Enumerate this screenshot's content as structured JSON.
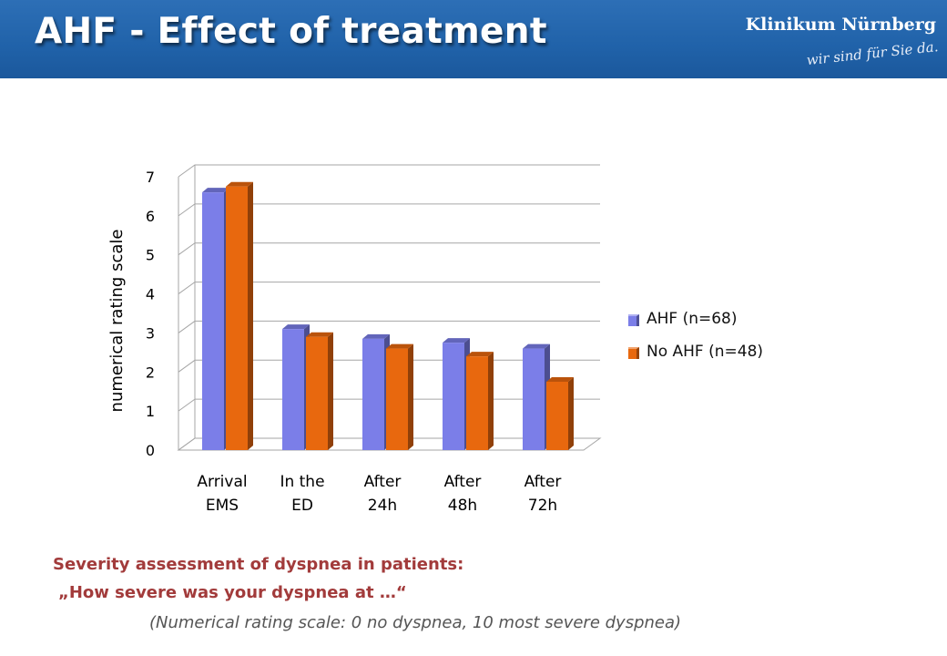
{
  "slide": {
    "title": "AHF - Effect of treatment"
  },
  "logo": {
    "name": "Klinikum Nürnberg",
    "slogan": "wir sind für Sie da."
  },
  "colors": {
    "header": "#2062a9",
    "ahf": "#7b7ee8",
    "no_ahf": "#e8680e",
    "caption": "#a23b3b"
  },
  "chart_data": {
    "type": "bar",
    "style": "3d-clustered",
    "categories": [
      [
        "Arrival",
        "EMS"
      ],
      [
        "In the",
        "ED"
      ],
      [
        "After",
        "24h"
      ],
      [
        "After",
        "48h"
      ],
      [
        "After",
        "72h"
      ]
    ],
    "series": [
      {
        "name": "AHF (n=68)",
        "color": "#7b7ee8",
        "values": [
          6.6,
          3.1,
          2.85,
          2.75,
          2.6
        ]
      },
      {
        "name": "No AHF (n=48)",
        "color": "#e8680e",
        "values": [
          6.75,
          2.9,
          2.6,
          2.4,
          1.75
        ]
      }
    ],
    "ylabel": "numerical rating scale",
    "ylim": [
      0,
      7
    ],
    "yticks": [
      0,
      1,
      2,
      3,
      4,
      5,
      6,
      7
    ],
    "grid": true,
    "legend_position": "right"
  },
  "caption": {
    "line1": "Severity assessment of dyspnea in patients:",
    "line2": "„How severe was your dyspnea at …“",
    "line3": "(Numerical rating scale: 0 no dyspnea, 10 most severe dyspnea)"
  }
}
